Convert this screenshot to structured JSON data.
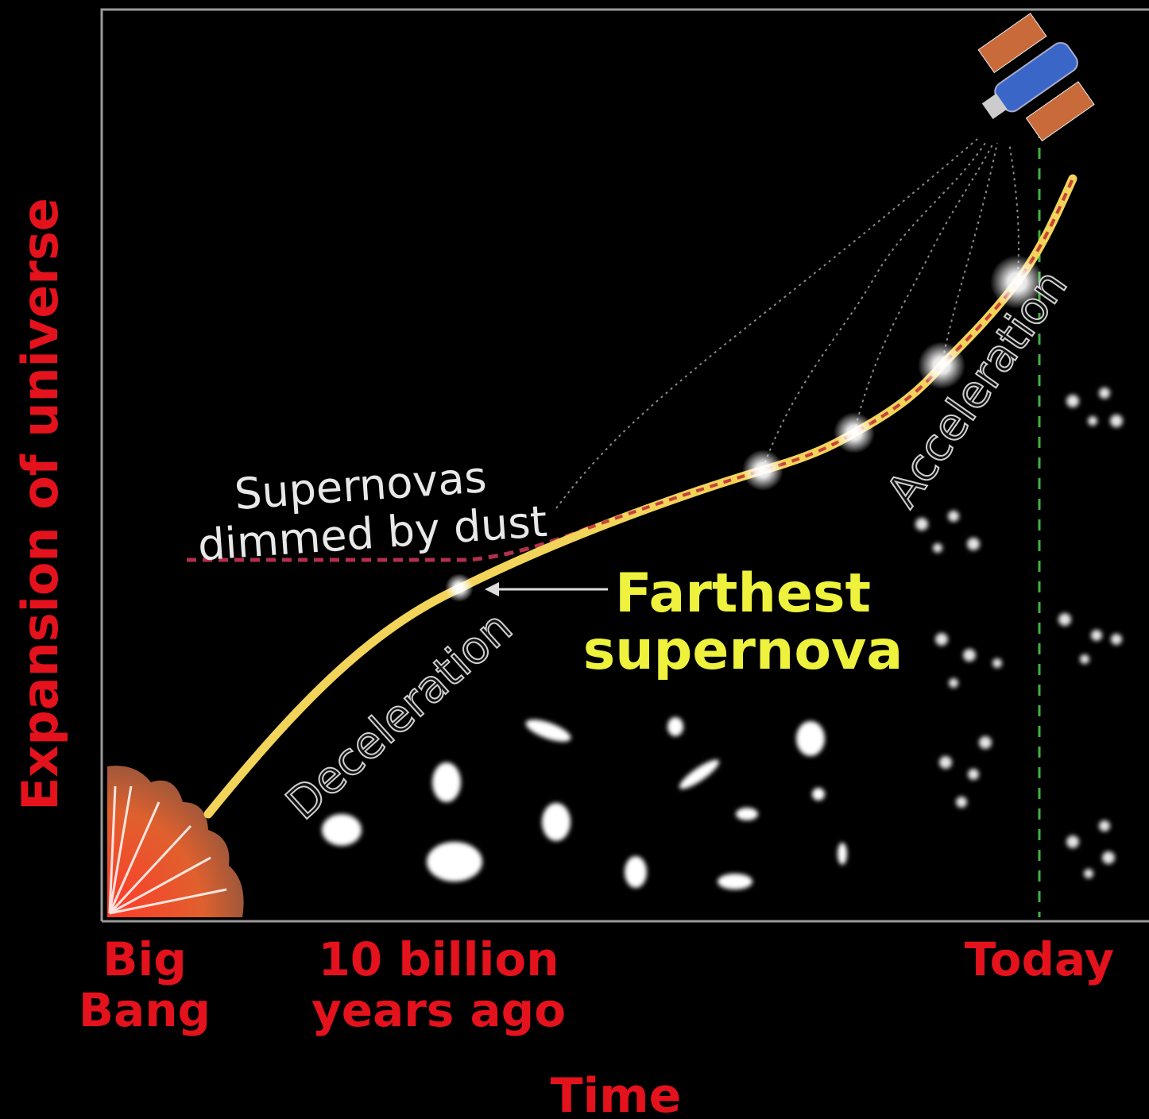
{
  "axes": {
    "y_label": "Expansion of universe",
    "x_label": "Time"
  },
  "time_markers": [
    {
      "lines": [
        "Big",
        "Bang"
      ]
    },
    {
      "lines": [
        "10 billion",
        "years ago"
      ]
    },
    {
      "lines": [
        "Today"
      ]
    }
  ],
  "annotations": {
    "dust": [
      "Supernovas",
      "dimmed by dust"
    ],
    "farthest": [
      "Farthest",
      "supernova"
    ],
    "deceleration": "Deceleration",
    "acceleration": "Acceleration"
  }
}
